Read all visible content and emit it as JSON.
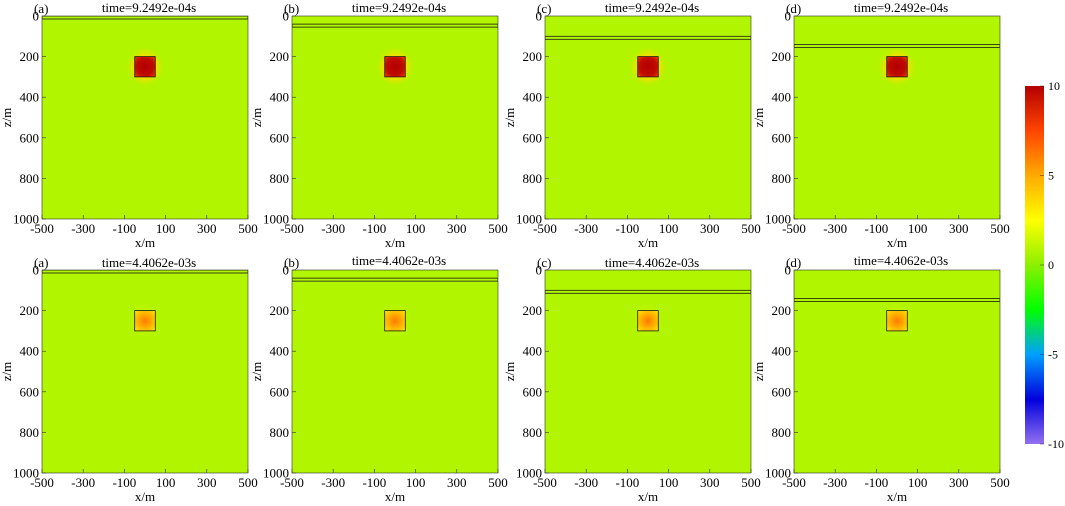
{
  "chart_data": {
    "type": "heatmap",
    "layout": {
      "rows": 2,
      "cols": 4
    },
    "xlabel": "x/m",
    "ylabel": "z/m",
    "xlim": [
      -500,
      500
    ],
    "ylim": [
      1000,
      0
    ],
    "x_ticks": [
      "-500",
      "-300",
      "-100",
      "100",
      "300",
      "500"
    ],
    "y_ticks": [
      "0",
      "200",
      "400",
      "600",
      "800",
      "1000"
    ],
    "colorbar": {
      "min": -10,
      "max": 10,
      "ticks": [
        "10",
        "5",
        "0",
        "-5",
        "-10"
      ],
      "colors": [
        "#9370f0",
        "#0000dc",
        "#00a0ff",
        "#00ff00",
        "#8cf000",
        "#ffff00",
        "#ffaa00",
        "#ff4400",
        "#b40000"
      ]
    },
    "background_value": 0.8,
    "anomaly": {
      "x": [
        -50,
        50
      ],
      "z": [
        200,
        300
      ]
    },
    "panels": [
      {
        "label": "(a)",
        "title": "time=9.2492e-04s",
        "layer_z": [
          0,
          14
        ],
        "center_value": 10,
        "halo": true
      },
      {
        "label": "(b)",
        "title": "time=9.2492e-04s",
        "layer_z": [
          40,
          54
        ],
        "center_value": 10,
        "halo": true
      },
      {
        "label": "(c)",
        "title": "time=9.2492e-04s",
        "layer_z": [
          100,
          114
        ],
        "center_value": 10,
        "halo": true
      },
      {
        "label": "(d)",
        "title": "time=9.2492e-04s",
        "layer_z": [
          140,
          154
        ],
        "center_value": 10,
        "halo": true
      },
      {
        "label": "(a)",
        "title": "time=4.4062e-03s",
        "layer_z": [
          0,
          14
        ],
        "center_value": 5,
        "halo": false
      },
      {
        "label": "(b)",
        "title": "time=4.4062e-03s",
        "layer_z": [
          40,
          54
        ],
        "center_value": 5,
        "halo": false
      },
      {
        "label": "(c)",
        "title": "time=4.4062e-03s",
        "layer_z": [
          100,
          114
        ],
        "center_value": 5,
        "halo": false
      },
      {
        "label": "(d)",
        "title": "time=4.4062e-03s",
        "layer_z": [
          140,
          154
        ],
        "center_value": 5,
        "halo": false
      }
    ]
  }
}
